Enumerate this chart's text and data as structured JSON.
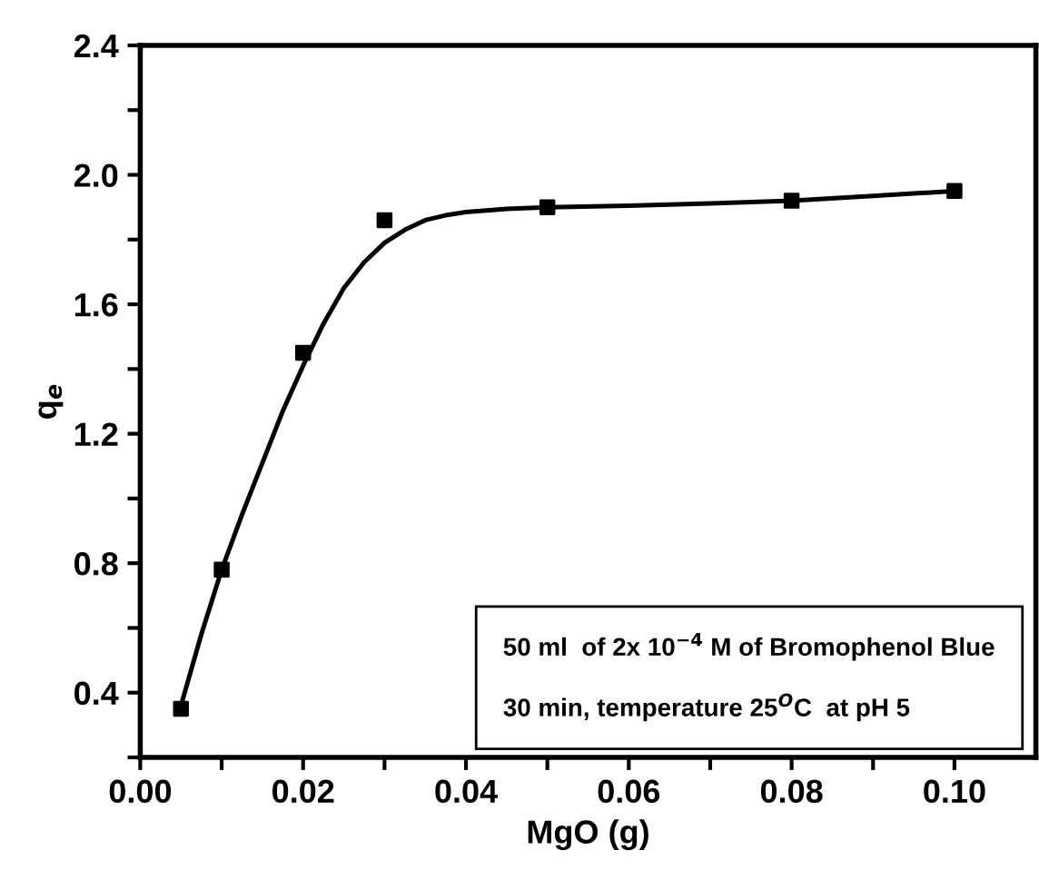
{
  "chart_data": {
    "type": "scatter",
    "xlabel": "MgO (g)",
    "ylabel": "q$_{e}$",
    "series": [
      {
        "color": "#000000",
        "marker": "square",
        "x": [
          0.005,
          0.01,
          0.02,
          0.03,
          0.05,
          0.08,
          0.1
        ],
        "values": [
          0.35,
          0.78,
          1.45,
          1.86,
          1.9,
          1.92,
          1.95
        ]
      },
      {
        "type": "line",
        "color": "#000000",
        "marker": "none",
        "line_style": "solid",
        "x": [
          0.005,
          0.0075,
          0.01,
          0.0125,
          0.015,
          0.0175,
          0.02,
          0.0225,
          0.025,
          0.0275,
          0.03,
          0.0325,
          0.035,
          0.0375,
          0.04,
          0.045,
          0.05,
          0.06,
          0.07,
          0.08,
          0.09,
          0.1
        ],
        "values": [
          0.36,
          0.58,
          0.78,
          0.95,
          1.11,
          1.27,
          1.41,
          1.54,
          1.65,
          1.73,
          1.79,
          1.83,
          1.86,
          1.875,
          1.885,
          1.895,
          1.9,
          1.905,
          1.912,
          1.92,
          1.935,
          1.95
        ]
      }
    ],
    "annotations": [
      "50 ml  of 2x 10$^{−4}$ M of Bromophenol Blue",
      "30 min, temperature 25$^{O}$C  at pH 5"
    ],
    "xlim": [
      0,
      0.11
    ],
    "ylim": [
      0.2,
      2.4
    ],
    "xticks": [
      {
        "value": 0,
        "label": "0.00"
      },
      {
        "value": 0.01,
        "label": null
      },
      {
        "value": 0.02,
        "label": "0.02"
      },
      {
        "value": 0.03,
        "label": null
      },
      {
        "value": 0.04,
        "label": "0.04"
      },
      {
        "value": 0.05,
        "label": null
      },
      {
        "value": 0.06,
        "label": "0.06"
      },
      {
        "value": 0.07,
        "label": null
      },
      {
        "value": 0.08,
        "label": "0.08"
      },
      {
        "value": 0.09,
        "label": null
      },
      {
        "value": 0.1,
        "label": "0.10"
      }
    ],
    "yticks": [
      {
        "value": 0.2,
        "label": null
      },
      {
        "value": 0.4,
        "label": "0.4"
      },
      {
        "value": 0.6,
        "label": null
      },
      {
        "value": 0.8,
        "label": "0.8"
      },
      {
        "value": 1.0,
        "label": null
      },
      {
        "value": 1.2,
        "label": "1.2"
      },
      {
        "value": 1.4,
        "label": null
      },
      {
        "value": 1.6,
        "label": "1.6"
      },
      {
        "value": 1.8,
        "label": null
      },
      {
        "value": 2.0,
        "label": "2.0"
      },
      {
        "value": 2.2,
        "label": null
      },
      {
        "value": 2.4,
        "label": "2.4"
      }
    ],
    "grid": false,
    "legend": false
  }
}
